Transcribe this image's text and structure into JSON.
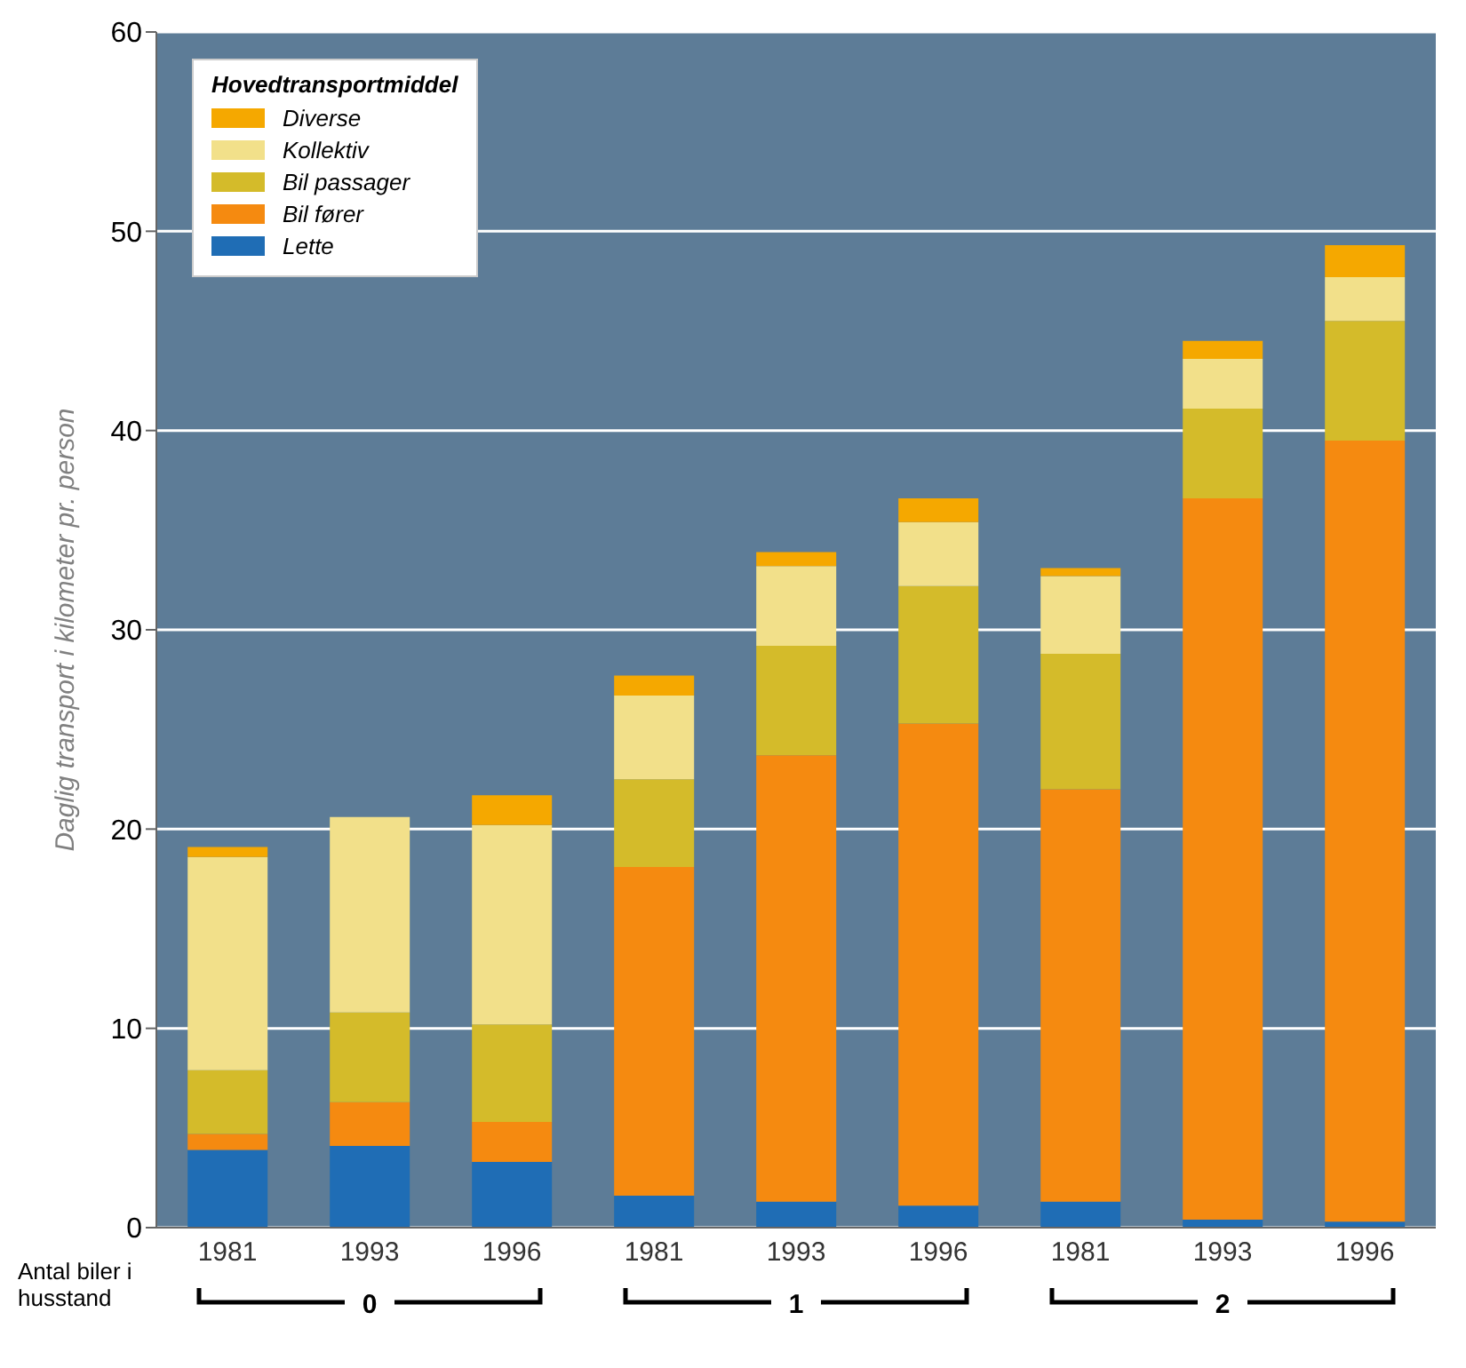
{
  "chart_data": {
    "type": "bar",
    "stacked": true,
    "ylabel": "Daglig transport i kilometer pr. person",
    "xlabel": "Antal biler i husstand",
    "legend_title": "Hovedtransportmiddel",
    "legend": "top left",
    "grid": "y",
    "categories": [
      "1981",
      "1993",
      "1996",
      "1981",
      "1993",
      "1996",
      "1981",
      "1993",
      "1996"
    ],
    "annotations": [
      "0",
      "1",
      "2"
    ],
    "ylim": [
      0,
      60
    ],
    "yticks": [
      0,
      10,
      20,
      30,
      40,
      50,
      60
    ],
    "series": [
      {
        "name": "Lette",
        "color": "#1f6db5",
        "values": [
          3.9,
          4.1,
          3.3,
          1.6,
          1.3,
          1.1,
          1.3,
          0.4,
          0.3
        ]
      },
      {
        "name": "Bil fører",
        "color": "#f58a10",
        "values": [
          0.8,
          2.2,
          2.0,
          16.5,
          22.4,
          24.2,
          20.7,
          36.2,
          39.2
        ]
      },
      {
        "name": "Bil passager",
        "color": "#d4bb2a",
        "values": [
          3.2,
          4.5,
          4.9,
          4.4,
          5.5,
          6.9,
          6.8,
          4.5,
          6.0
        ]
      },
      {
        "name": "Kollektiv",
        "color": "#f2e08a",
        "values": [
          10.7,
          9.8,
          10.0,
          4.2,
          4.0,
          3.2,
          3.9,
          2.5,
          2.2
        ]
      },
      {
        "name": "Diverse",
        "color": "#f5a800",
        "values": [
          0.5,
          0,
          1.5,
          1.0,
          0.7,
          1.2,
          0.4,
          0.9,
          1.6
        ]
      }
    ]
  }
}
